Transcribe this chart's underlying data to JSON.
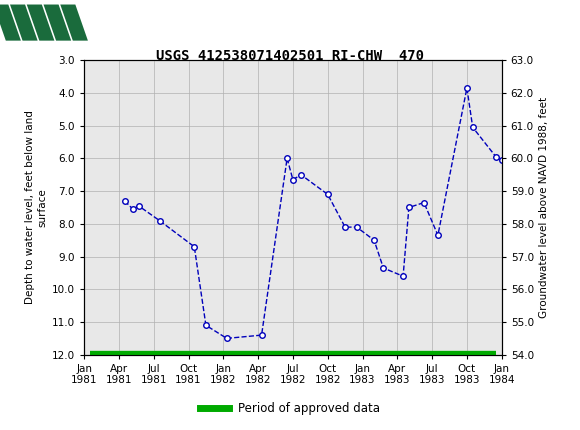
{
  "title": "USGS 412538071402501 RI-CHW  470",
  "ylabel_left": "Depth to water level, feet below land\nsurface",
  "ylabel_right": "Groundwater level above NAVD 1988, feet",
  "ylim_left": [
    12.0,
    3.0
  ],
  "ylim_right": [
    54.0,
    63.0
  ],
  "yticks_left": [
    3.0,
    4.0,
    5.0,
    6.0,
    7.0,
    8.0,
    9.0,
    10.0,
    11.0,
    12.0
  ],
  "yticks_right": [
    54.0,
    55.0,
    56.0,
    57.0,
    58.0,
    59.0,
    60.0,
    61.0,
    62.0,
    63.0
  ],
  "xtick_labels": [
    "Jan\n1981",
    "Apr\n1981",
    "Jul\n1981",
    "Oct\n1981",
    "Jan\n1982",
    "Apr\n1982",
    "Jul\n1982",
    "Oct\n1982",
    "Jan\n1983",
    "Apr\n1983",
    "Jul\n1983",
    "Oct\n1983",
    "Jan\n1984"
  ],
  "xtick_positions": [
    0,
    3,
    6,
    9,
    12,
    15,
    18,
    21,
    24,
    27,
    30,
    33,
    36
  ],
  "data_points_x": [
    3.5,
    4.2,
    4.8,
    6.8,
    9.5,
    10.5,
    12.3,
    15.3,
    17.5,
    18.0,
    18.7,
    21.0,
    22.5,
    23.5,
    24.8,
    25.8,
    27.5,
    28.0,
    29.3,
    30.5,
    27.0,
    30.0,
    33.0,
    33.5,
    35.5,
    36.0
  ],
  "data_points_y": [
    7.3,
    7.55,
    7.45,
    7.9,
    8.7,
    11.1,
    11.5,
    11.4,
    6.0,
    6.7,
    6.5,
    7.1,
    8.1,
    8.1,
    8.5,
    9.35,
    9.6,
    7.5,
    7.35,
    8.35,
    7.35,
    8.35,
    3.85,
    5.05,
    5.95,
    6.05
  ],
  "line_color": "#0000BB",
  "marker_color": "#0000BB",
  "header_color": "#1a6b3c",
  "background_color": "#ffffff",
  "plot_bg_color": "#e8e8e8",
  "grid_color": "#b0b0b0",
  "approved_bar_color": "#00aa00",
  "legend_label": "Period of approved data",
  "xmin": 0,
  "xmax": 36
}
